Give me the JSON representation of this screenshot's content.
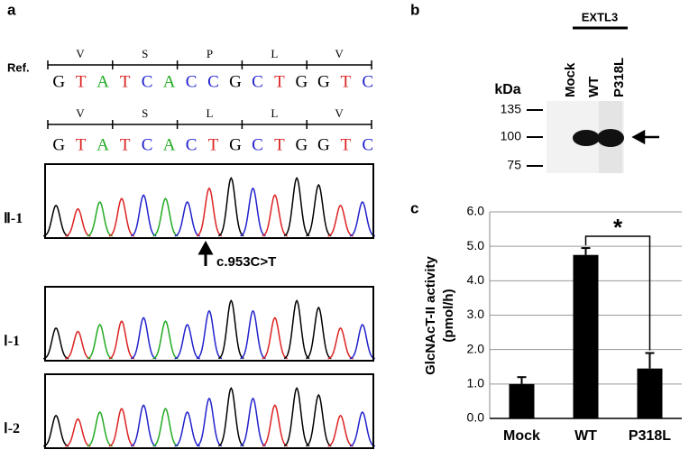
{
  "panel_a": {
    "label": "a",
    "ref_label": "Ref.",
    "ref_aa": [
      "V",
      "S",
      "P",
      "L",
      "V"
    ],
    "ref_bases": [
      "G",
      "T",
      "A",
      "T",
      "C",
      "A",
      "C",
      "C",
      "G",
      "C",
      "T",
      "G",
      "G",
      "T",
      "C"
    ],
    "mut_aa": [
      "V",
      "S",
      "L",
      "L",
      "V"
    ],
    "mut_bases": [
      "G",
      "T",
      "A",
      "T",
      "C",
      "A",
      "C",
      "T",
      "G",
      "C",
      "T",
      "G",
      "G",
      "T",
      "C"
    ],
    "traces": [
      "Ⅱ-1",
      "Ⅰ-1",
      "Ⅰ-2"
    ],
    "mutation": "c.953C>T"
  },
  "panel_b": {
    "label": "b",
    "group": "EXTL3",
    "lanes": [
      "Mock",
      "WT",
      "P318L"
    ],
    "unit": "kDa",
    "markers": [
      "135",
      "100",
      "75"
    ]
  },
  "chart_data": {
    "type": "bar",
    "panel_label": "c",
    "y_label": [
      "GlcNAcT-II activity",
      "(pmol/h)"
    ],
    "categories": [
      "Mock",
      "WT",
      "P318L"
    ],
    "values": [
      1.0,
      4.75,
      1.45
    ],
    "errors": [
      0.2,
      0.2,
      0.45
    ],
    "color": "#000000",
    "ylim": [
      0,
      6
    ],
    "yticks": [
      {
        "value": 0,
        "label": "0.0"
      },
      {
        "value": 1,
        "label": "1.0"
      },
      {
        "value": 2,
        "label": "2.0"
      },
      {
        "value": 3,
        "label": "3.0"
      },
      {
        "value": 4,
        "label": "4.0"
      },
      {
        "value": 5,
        "label": "5.0"
      },
      {
        "value": 6,
        "label": "6.0"
      }
    ],
    "grid": true,
    "significance": "*"
  }
}
